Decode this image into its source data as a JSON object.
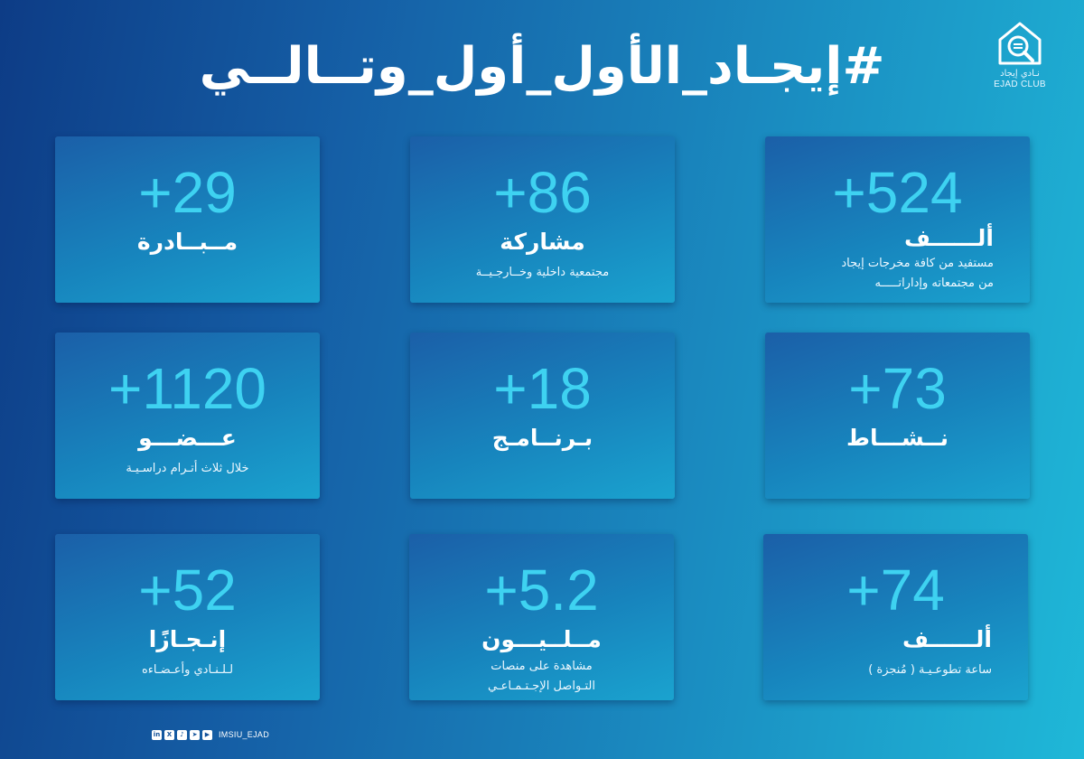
{
  "title": "#إيجـاد_الأول_أول_وتــالــي",
  "logo": {
    "icon": "search-house-icon",
    "arabic": "نـادي إيجاد",
    "english": "EJAD CLUB"
  },
  "stats": [
    {
      "number": "+524",
      "label": "ألــــــف",
      "sub1": "مستفيد من كافة مخرجات إيجاد",
      "sub2": "من مجتمعاته وإداراتـــــه"
    },
    {
      "number": "+86",
      "label": "مشاركة",
      "sub1": "مجتمعية داخلية  وخــارجـيــة",
      "sub2": ""
    },
    {
      "number": "+29",
      "label": "مــبــادرة",
      "sub1": "",
      "sub2": ""
    },
    {
      "number": "+73",
      "label": "نــشـــاط",
      "sub1": "",
      "sub2": ""
    },
    {
      "number": "+18",
      "label": "بـرنــامـج",
      "sub1": "",
      "sub2": ""
    },
    {
      "number": "+1120",
      "label": "عـــضـــو",
      "sub1": "خلال ثلاث أتـرام دراسـيـة",
      "sub2": ""
    },
    {
      "number": "+74",
      "label": "ألــــــف",
      "sub1": "ساعة تطوعـيـة  ( مُنجزة )",
      "sub2": ""
    },
    {
      "number": "+5.2",
      "label": "مــلــيـــون",
      "sub1": "مشاهدة على منصات",
      "sub2": "التـواصل الإجـتـمـاعـي"
    },
    {
      "number": "+52",
      "label": "إنـجـازًا",
      "sub1": "لـلـنـادي وأعـضـاءه",
      "sub2": ""
    }
  ],
  "footer": {
    "icons": [
      "linkedin-icon",
      "x-icon",
      "tiktok-icon",
      "telegram-icon",
      "youtube-icon"
    ],
    "handle": "IMSIU_EJAD"
  },
  "colors": {
    "background_left": "#0d3c86",
    "background_right": "#1fb8d8",
    "number": "#3ed2f1",
    "text": "#ffffff"
  }
}
